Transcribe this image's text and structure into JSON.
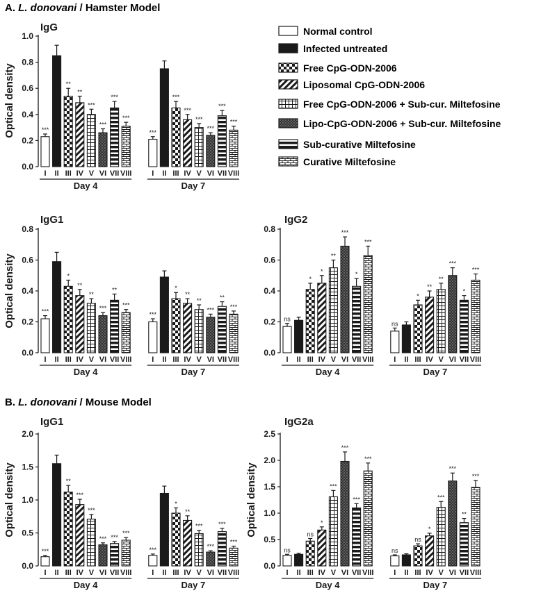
{
  "sections": [
    {
      "letter": "A.",
      "species": "L. donovani",
      "rest": " / Hamster Model"
    },
    {
      "letter": "B.",
      "species": "L. donovani",
      "rest": " / Mouse Model"
    }
  ],
  "legend": [
    {
      "label": "Normal control",
      "pattern": "white"
    },
    {
      "label": "Infected untreated",
      "pattern": "black"
    },
    {
      "label": "Free CpG-ODN-2006",
      "pattern": "checker"
    },
    {
      "label": "Liposomal CpG-ODN-2006",
      "pattern": "diag"
    },
    {
      "label": "Free CpG-ODN-2006 + Sub-cur. Miltefosine",
      "pattern": "grid"
    },
    {
      "label": "Lipo-CpG-ODN-2006 + Sub-cur. Miltefosine",
      "pattern": "dots"
    },
    {
      "label": "Sub-curative Miltefosine",
      "pattern": "hstripes"
    },
    {
      "label": "Curative Miltefosine",
      "pattern": "brick"
    }
  ],
  "colors": {
    "ink": "#1a1a1a",
    "bar_fill": "#ffffff",
    "background": "#ffffff"
  },
  "chart_data": [
    {
      "type": "bar",
      "title": "IgG",
      "ylabel": "Optical density",
      "ylim": [
        0,
        1.0
      ],
      "yticks": [
        "0.0",
        "0.2",
        "0.4",
        "0.6",
        "0.8",
        "1.0"
      ],
      "roman": [
        "I",
        "II",
        "III",
        "IV",
        "V",
        "VI",
        "VII",
        "VIII"
      ],
      "groups": [
        "Day 4",
        "Day 7"
      ],
      "series": [
        {
          "name": "Day 4",
          "values": [
            0.23,
            0.85,
            0.54,
            0.49,
            0.4,
            0.26,
            0.45,
            0.31
          ],
          "errors": [
            0.02,
            0.08,
            0.06,
            0.05,
            0.04,
            0.03,
            0.05,
            0.03
          ],
          "stars": [
            "***",
            "",
            "**",
            "**",
            "***",
            "***",
            "***",
            "***"
          ]
        },
        {
          "name": "Day 7",
          "values": [
            0.21,
            0.75,
            0.45,
            0.36,
            0.3,
            0.24,
            0.39,
            0.28
          ],
          "errors": [
            0.02,
            0.06,
            0.05,
            0.04,
            0.03,
            0.02,
            0.04,
            0.03
          ],
          "stars": [
            "***",
            "",
            "***",
            "***",
            "***",
            "***",
            "***",
            "***"
          ]
        }
      ]
    },
    {
      "type": "bar",
      "title": "IgG1",
      "ylabel": "Optical density",
      "ylim": [
        0,
        0.8
      ],
      "yticks": [
        "0.0",
        "0.2",
        "0.4",
        "0.6",
        "0.8"
      ],
      "roman": [
        "I",
        "II",
        "III",
        "IV",
        "V",
        "VI",
        "VII",
        "VIII"
      ],
      "groups": [
        "Day 4",
        "Day 7"
      ],
      "series": [
        {
          "name": "Day 4",
          "values": [
            0.22,
            0.59,
            0.43,
            0.37,
            0.32,
            0.24,
            0.34,
            0.26
          ],
          "errors": [
            0.02,
            0.06,
            0.04,
            0.04,
            0.03,
            0.02,
            0.04,
            0.02
          ],
          "stars": [
            "***",
            "",
            "*",
            "**",
            "**",
            "***",
            "**",
            "***"
          ]
        },
        {
          "name": "Day 7",
          "values": [
            0.2,
            0.49,
            0.35,
            0.32,
            0.28,
            0.23,
            0.3,
            0.25
          ],
          "errors": [
            0.02,
            0.04,
            0.04,
            0.03,
            0.03,
            0.02,
            0.03,
            0.02
          ],
          "stars": [
            "***",
            "",
            "*",
            "**",
            "**",
            "***",
            "**",
            "***"
          ]
        }
      ]
    },
    {
      "type": "bar",
      "title": "IgG2",
      "ylabel": "",
      "ylim": [
        0,
        0.8
      ],
      "yticks": [
        "0.0",
        "0.2",
        "0.4",
        "0.6",
        "0.8"
      ],
      "roman": [
        "I",
        "II",
        "III",
        "IV",
        "V",
        "VI",
        "VII",
        "VIII"
      ],
      "groups": [
        "Day 4",
        "Day 7"
      ],
      "series": [
        {
          "name": "Day 4",
          "values": [
            0.17,
            0.21,
            0.41,
            0.45,
            0.55,
            0.69,
            0.43,
            0.63
          ],
          "errors": [
            0.02,
            0.02,
            0.04,
            0.05,
            0.05,
            0.06,
            0.05,
            0.06
          ],
          "stars": [
            "ns",
            "",
            "*",
            "*",
            "**",
            "***",
            "*",
            "***"
          ]
        },
        {
          "name": "Day 7",
          "values": [
            0.14,
            0.18,
            0.31,
            0.36,
            0.41,
            0.5,
            0.34,
            0.47
          ],
          "errors": [
            0.02,
            0.02,
            0.03,
            0.04,
            0.04,
            0.05,
            0.03,
            0.04
          ],
          "stars": [
            "ns",
            "",
            "*",
            "**",
            "**",
            "***",
            "*",
            "***"
          ]
        }
      ]
    },
    {
      "type": "bar",
      "title": "IgG1",
      "ylabel": "Optical density",
      "ylim": [
        0,
        2.0
      ],
      "yticks": [
        "0.0",
        "0.5",
        "1.0",
        "1.5",
        "2.0"
      ],
      "roman": [
        "I",
        "II",
        "III",
        "IV",
        "V",
        "VI",
        "VII",
        "VIII"
      ],
      "groups": [
        "Day 4",
        "Day 7"
      ],
      "series": [
        {
          "name": "Day 4",
          "values": [
            0.14,
            1.55,
            1.12,
            0.93,
            0.71,
            0.32,
            0.34,
            0.39
          ],
          "errors": [
            0.02,
            0.13,
            0.1,
            0.08,
            0.07,
            0.03,
            0.03,
            0.04
          ],
          "stars": [
            "***",
            "",
            "**",
            "***",
            "***",
            "***",
            "***",
            "***"
          ]
        },
        {
          "name": "Day 7",
          "values": [
            0.16,
            1.1,
            0.8,
            0.69,
            0.49,
            0.21,
            0.52,
            0.27
          ],
          "errors": [
            0.02,
            0.11,
            0.08,
            0.07,
            0.05,
            0.02,
            0.05,
            0.03
          ],
          "stars": [
            "***",
            "",
            "*",
            "**",
            "***",
            "***",
            "***",
            "***"
          ]
        }
      ]
    },
    {
      "type": "bar",
      "title": "IgG2a",
      "ylabel": "Optical density",
      "ylim": [
        0,
        2.5
      ],
      "yticks": [
        "0.0",
        "0.5",
        "1.0",
        "1.5",
        "2.0",
        "2.5"
      ],
      "roman": [
        "I",
        "II",
        "III",
        "IV",
        "V",
        "VI",
        "VII",
        "VIII"
      ],
      "groups": [
        "Day 4",
        "Day 7"
      ],
      "series": [
        {
          "name": "Day 4",
          "values": [
            0.2,
            0.22,
            0.47,
            0.68,
            1.31,
            1.98,
            1.1,
            1.8
          ],
          "errors": [
            0.02,
            0.02,
            0.05,
            0.06,
            0.12,
            0.18,
            0.08,
            0.15
          ],
          "stars": [
            "ns",
            "",
            "ns",
            "*",
            "***",
            "***",
            "***",
            "***"
          ]
        },
        {
          "name": "Day 7",
          "values": [
            0.19,
            0.21,
            0.38,
            0.57,
            1.11,
            1.61,
            0.82,
            1.49
          ],
          "errors": [
            0.02,
            0.02,
            0.04,
            0.05,
            0.11,
            0.15,
            0.08,
            0.13
          ],
          "stars": [
            "ns",
            "",
            "ns",
            "*",
            "***",
            "***",
            "**",
            "***"
          ]
        }
      ]
    }
  ]
}
